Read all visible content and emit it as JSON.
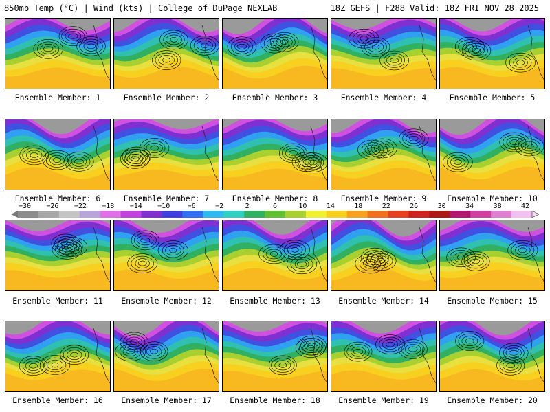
{
  "header": {
    "title_left": "850mb Temp (°C) | Wind (kts) | College of DuPage NEXLAB",
    "title_right": "18Z GEFS | F288 Valid: 18Z FRI NOV 28 2025"
  },
  "colorbar": {
    "labels": [
      "−30",
      "−26",
      "−22",
      "−18",
      "−14",
      "−10",
      "−6",
      "−2",
      "2",
      "6",
      "10",
      "14",
      "18",
      "22",
      "26",
      "30",
      "34",
      "38",
      "42"
    ],
    "colors": [
      "#8c8c8c",
      "#a8a8a8",
      "#c4c4c4",
      "#b8a4d8",
      "#e070e8",
      "#c040e0",
      "#8030d0",
      "#4040e0",
      "#3070f0",
      "#30b8f0",
      "#30d0c0",
      "#30b060",
      "#60c030",
      "#a8d030",
      "#f0f030",
      "#f8d020",
      "#f8a020",
      "#f07020",
      "#e84020",
      "#d02020",
      "#b01818",
      "#b01870",
      "#d040a0",
      "#e080d0",
      "#f0c0f0"
    ]
  },
  "members": [
    {
      "label": "Ensemble Member: 1"
    },
    {
      "label": "Ensemble Member: 2"
    },
    {
      "label": "Ensemble Member: 3"
    },
    {
      "label": "Ensemble Member: 4"
    },
    {
      "label": "Ensemble Member: 5"
    },
    {
      "label": "Ensemble Member: 6"
    },
    {
      "label": "Ensemble Member: 7"
    },
    {
      "label": "Ensemble Member: 8"
    },
    {
      "label": "Ensemble Member: 9"
    },
    {
      "label": "Ensemble Member: 10"
    },
    {
      "label": "Ensemble Member: 11"
    },
    {
      "label": "Ensemble Member: 12"
    },
    {
      "label": "Ensemble Member: 13"
    },
    {
      "label": "Ensemble Member: 14"
    },
    {
      "label": "Ensemble Member: 15"
    },
    {
      "label": "Ensemble Member: 16"
    },
    {
      "label": "Ensemble Member: 17"
    },
    {
      "label": "Ensemble Member: 18"
    },
    {
      "label": "Ensemble Member: 19"
    },
    {
      "label": "Ensemble Member: 20"
    }
  ]
}
